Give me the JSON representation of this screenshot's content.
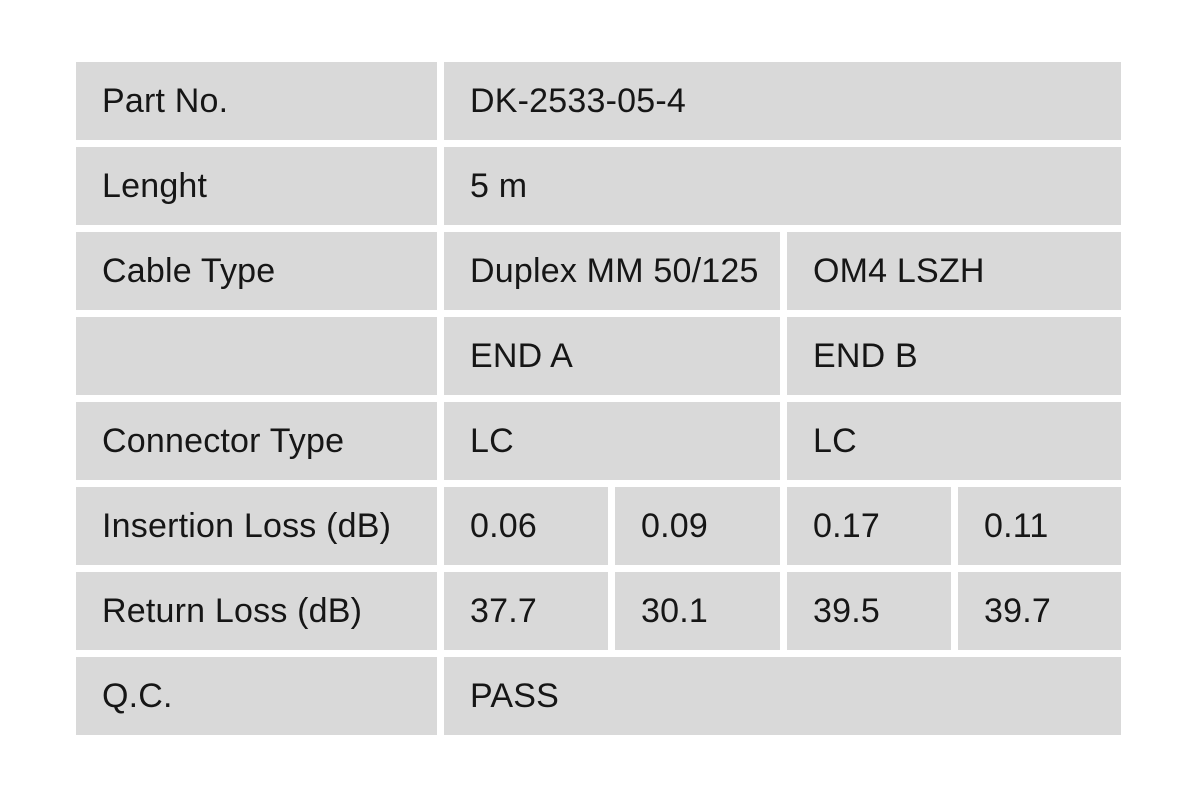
{
  "page": {
    "background_color": "#ffffff"
  },
  "table": {
    "cell_background": "#d9d9d9",
    "text_color": "#161616",
    "rows": [
      {
        "label": "Part No.",
        "values": [
          "DK-2533-05-4"
        ]
      },
      {
        "label": "Lenght",
        "values": [
          "5 m"
        ]
      },
      {
        "label": "Cable Type",
        "values": [
          "Duplex MM 50/125",
          "OM4 LSZH"
        ]
      },
      {
        "label": "",
        "values": [
          "END A",
          "END B"
        ]
      },
      {
        "label": "Connector Type",
        "values": [
          "LC",
          "LC"
        ]
      },
      {
        "label": "Insertion Loss (dB)",
        "values": [
          "0.06",
          "0.09",
          "0.17",
          "0.11"
        ]
      },
      {
        "label": "Return Loss (dB)",
        "values": [
          "37.7",
          "30.1",
          "39.5",
          "39.7"
        ]
      },
      {
        "label": "Q.C.",
        "values": [
          "PASS"
        ]
      }
    ]
  }
}
